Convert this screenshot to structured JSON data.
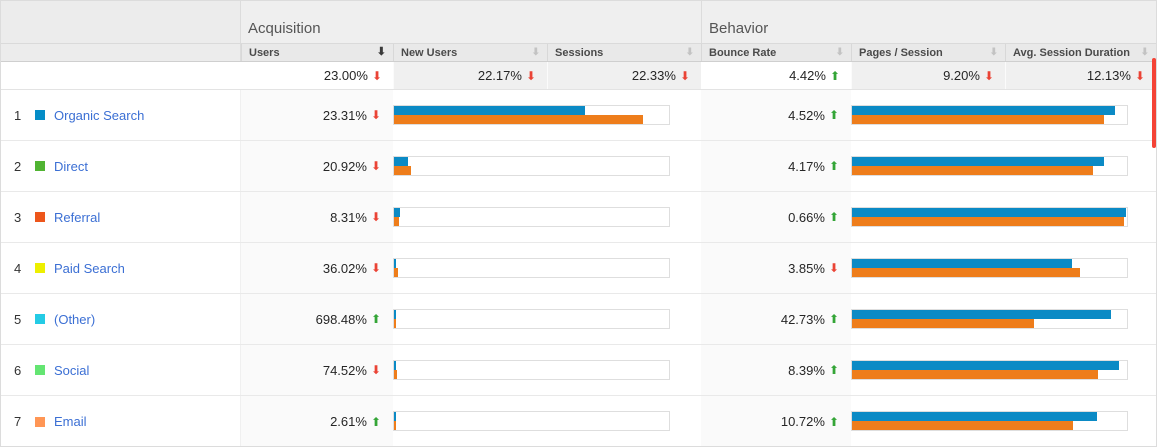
{
  "table": {
    "groups": [
      {
        "label": "Acquisition"
      },
      {
        "label": "Behavior"
      }
    ],
    "columns": [
      {
        "label": "Users",
        "sorted": "active"
      },
      {
        "label": "New Users",
        "sorted": "inactive"
      },
      {
        "label": "Sessions",
        "sorted": "inactive"
      },
      {
        "label": "Bounce Rate",
        "sorted": "inactive"
      },
      {
        "label": "Pages / Session",
        "sorted": "inactive"
      },
      {
        "label": "Avg. Session Duration",
        "sorted": "inactive"
      }
    ],
    "summary": [
      {
        "value": "23.00%",
        "direction": "down"
      },
      {
        "value": "22.17%",
        "direction": "down"
      },
      {
        "value": "22.33%",
        "direction": "down"
      },
      {
        "value": "4.42%",
        "direction": "up"
      },
      {
        "value": "9.20%",
        "direction": "down"
      },
      {
        "value": "12.13%",
        "direction": "down"
      }
    ],
    "rows": [
      {
        "index": "1",
        "channel": "Organic Search",
        "color": "#058dc7",
        "acq": {
          "value": "23.31%",
          "direction": "down",
          "bar_blue": 69.5,
          "bar_orange": 90.6
        },
        "beh": {
          "value": "4.52%",
          "direction": "up",
          "bar_blue": 95.5,
          "bar_orange": 91.5
        }
      },
      {
        "index": "2",
        "channel": "Direct",
        "color": "#50b432",
        "acq": {
          "value": "20.92%",
          "direction": "down",
          "bar_blue": 5.0,
          "bar_orange": 6.2
        },
        "beh": {
          "value": "4.17%",
          "direction": "up",
          "bar_blue": 91.5,
          "bar_orange": 87.8
        }
      },
      {
        "index": "3",
        "channel": "Referral",
        "color": "#ed561b",
        "acq": {
          "value": "8.31%",
          "direction": "down",
          "bar_blue": 2.2,
          "bar_orange": 1.8
        },
        "beh": {
          "value": "0.66%",
          "direction": "up",
          "bar_blue": 99.5,
          "bar_orange": 99.0
        }
      },
      {
        "index": "4",
        "channel": "Paid Search",
        "color": "#edef00",
        "acq": {
          "value": "36.02%",
          "direction": "down",
          "bar_blue": 0.8,
          "bar_orange": 1.6
        },
        "beh": {
          "value": "3.85%",
          "direction": "down",
          "bar_blue": 80.0,
          "bar_orange": 83.0
        }
      },
      {
        "index": "5",
        "channel": "(Other)",
        "color": "#24cbe5",
        "acq": {
          "value": "698.48%",
          "direction": "up",
          "bar_blue": 0.6,
          "bar_orange": 0.6
        },
        "beh": {
          "value": "42.73%",
          "direction": "up",
          "bar_blue": 94.0,
          "bar_orange": 66.0
        }
      },
      {
        "index": "6",
        "channel": "Social",
        "color": "#64e572",
        "acq": {
          "value": "74.52%",
          "direction": "down",
          "bar_blue": 0.7,
          "bar_orange": 1.2
        },
        "beh": {
          "value": "8.39%",
          "direction": "up",
          "bar_blue": 97.0,
          "bar_orange": 89.5
        }
      },
      {
        "index": "7",
        "channel": "Email",
        "color": "#ff9655",
        "acq": {
          "value": "2.61%",
          "direction": "up",
          "bar_blue": 0.6,
          "bar_orange": 0.7
        },
        "beh": {
          "value": "10.72%",
          "direction": "up",
          "bar_blue": 89.0,
          "bar_orange": 80.5
        }
      }
    ]
  },
  "colors": {
    "bar_blue": "#0b8ac5",
    "bar_orange": "#ee7d1b",
    "arrow_up": "#34a537",
    "arrow_down": "#ea4335",
    "scrollbar": "#f44336",
    "link": "#3b6fd4"
  }
}
